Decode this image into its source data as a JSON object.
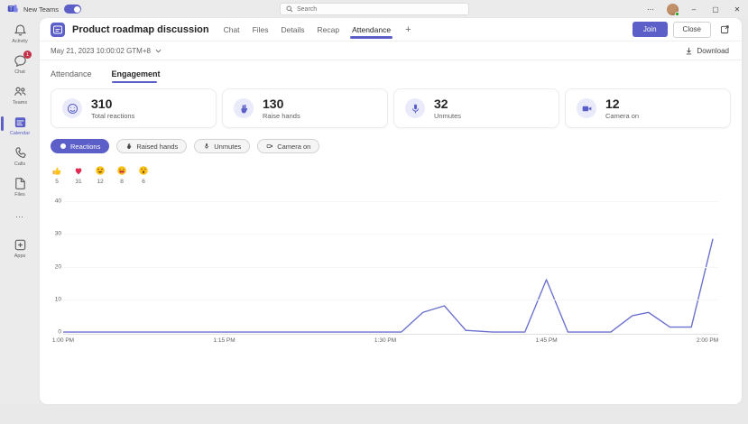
{
  "titlebar": {
    "app_label": "New Teams",
    "search_placeholder": "Search"
  },
  "window_controls": {
    "more": "⋯",
    "minimize": "–",
    "maximize": "▢",
    "close": "✕"
  },
  "sidebar": {
    "items": [
      {
        "label": "Activity",
        "badge": ""
      },
      {
        "label": "Chat",
        "badge": "1"
      },
      {
        "label": "Teams",
        "badge": ""
      },
      {
        "label": "Calendar",
        "badge": "",
        "active": true
      },
      {
        "label": "Calls",
        "badge": ""
      },
      {
        "label": "Files",
        "badge": ""
      },
      {
        "label": "",
        "badge": ""
      },
      {
        "label": "Apps",
        "badge": ""
      }
    ]
  },
  "meeting": {
    "title": "Product roadmap discussion",
    "tabs": [
      "Chat",
      "Files",
      "Details",
      "Recap",
      "Attendance"
    ],
    "active_tab": "Attendance",
    "add_tab": "+",
    "join_label": "Join",
    "close_label": "Close"
  },
  "toolbar": {
    "datetime": "May 21, 2023 10:00:02 GTM+8",
    "download_label": "Download"
  },
  "view_tabs": {
    "attendance": "Attendance",
    "engagement": "Engagement",
    "active": "Engagement"
  },
  "stats": [
    {
      "value": "310",
      "label": "Total reactions",
      "icon": "smiley-icon"
    },
    {
      "value": "130",
      "label": "Raise hands",
      "icon": "raised-hand-icon"
    },
    {
      "value": "32",
      "label": "Unmutes",
      "icon": "mic-icon"
    },
    {
      "value": "12",
      "label": "Camera on",
      "icon": "camera-icon"
    }
  ],
  "filters": [
    {
      "label": "Reactions",
      "active": true,
      "icon": "smiley-icon"
    },
    {
      "label": "Raised hands",
      "active": false,
      "icon": "raised-hand-icon"
    },
    {
      "label": "Unmutes",
      "active": false,
      "icon": "mic-icon"
    },
    {
      "label": "Camera on",
      "active": false,
      "icon": "camera-icon"
    }
  ],
  "reactions": [
    {
      "name": "thumbs-up",
      "count": "5"
    },
    {
      "name": "heart",
      "count": "31"
    },
    {
      "name": "laugh",
      "count": "12"
    },
    {
      "name": "grin",
      "count": "8"
    },
    {
      "name": "surprised",
      "count": "6"
    }
  ],
  "colors": {
    "accent": "#5b5fc7",
    "badge_red": "#c4314b",
    "line": "#6b70ce"
  },
  "chart_data": {
    "type": "line",
    "title": "Reactions over meeting time",
    "xlabel": "",
    "ylabel": "",
    "x_ticks": [
      "1:00 PM",
      "1:15 PM",
      "1:30 PM",
      "1:45 PM",
      "2:00 PM"
    ],
    "x_tick_minutes": [
      0,
      15,
      30,
      45,
      60
    ],
    "xlim_minutes": [
      0,
      61
    ],
    "y_ticks": [
      0,
      10,
      20,
      30,
      40
    ],
    "ylim": [
      0,
      40
    ],
    "grid": "faint-horizontal",
    "legend": "none",
    "series": [
      {
        "name": "Reactions",
        "color": "#6b70ce",
        "points_minutes_value": [
          [
            0,
            0
          ],
          [
            30,
            0
          ],
          [
            31.5,
            0
          ],
          [
            33.5,
            6
          ],
          [
            35.5,
            8
          ],
          [
            37.5,
            0.5
          ],
          [
            40,
            0
          ],
          [
            43,
            0
          ],
          [
            45,
            16
          ],
          [
            47,
            0
          ],
          [
            51,
            0
          ],
          [
            53,
            5
          ],
          [
            54.5,
            6
          ],
          [
            56.5,
            1.5
          ],
          [
            58.5,
            1.5
          ],
          [
            60.5,
            28.5
          ]
        ]
      }
    ]
  }
}
